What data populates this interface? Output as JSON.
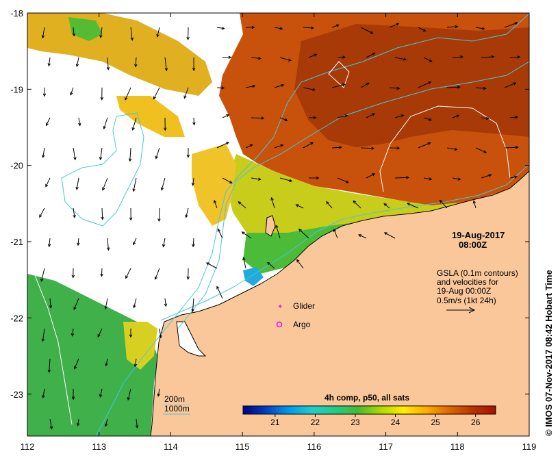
{
  "colors": {
    "land": "#f9c79a",
    "frame": "#000000",
    "contour_200m": "#7fd3dc",
    "contour_1000m": "#44c8d8",
    "gsla_contour": "#ffffff",
    "glider": "#cc33cc",
    "argo": "#ff00ff"
  },
  "map": {
    "x_ticks": [
      "112",
      "113",
      "114",
      "115",
      "116",
      "117",
      "118",
      "119"
    ],
    "y_ticks": [
      "-18",
      "-19",
      "-20",
      "-21",
      "-22",
      "-23"
    ]
  },
  "date_block": {
    "date": "19-Aug-2017",
    "time": "08:00Z"
  },
  "info_block": {
    "line1": "GSLA (0.1m contours)",
    "line2": "and velocities for",
    "line3": "19-Aug 00:00Z",
    "line4": "0.5m/s (1kt 24h)"
  },
  "markers": {
    "glider_label": "Glider",
    "argo_label": "Argo"
  },
  "depth_legend": {
    "label_200": "200m",
    "label_1000": "1000m"
  },
  "colorbar": {
    "title": "4h comp, p50, all sats",
    "ticks": [
      "21",
      "22",
      "23",
      "24",
      "25",
      "26"
    ],
    "value_min": 20.2,
    "value_max": 26.5,
    "stops": [
      "#000080",
      "#0040c0",
      "#0099ee",
      "#22cccc",
      "#22cc88",
      "#44bb33",
      "#aadd00",
      "#ffee00",
      "#ffaa00",
      "#dd6600",
      "#bb3300",
      "#aa1100"
    ]
  },
  "credit": "© IMOS 07-Nov-2017 08:42 Hobart Time"
}
